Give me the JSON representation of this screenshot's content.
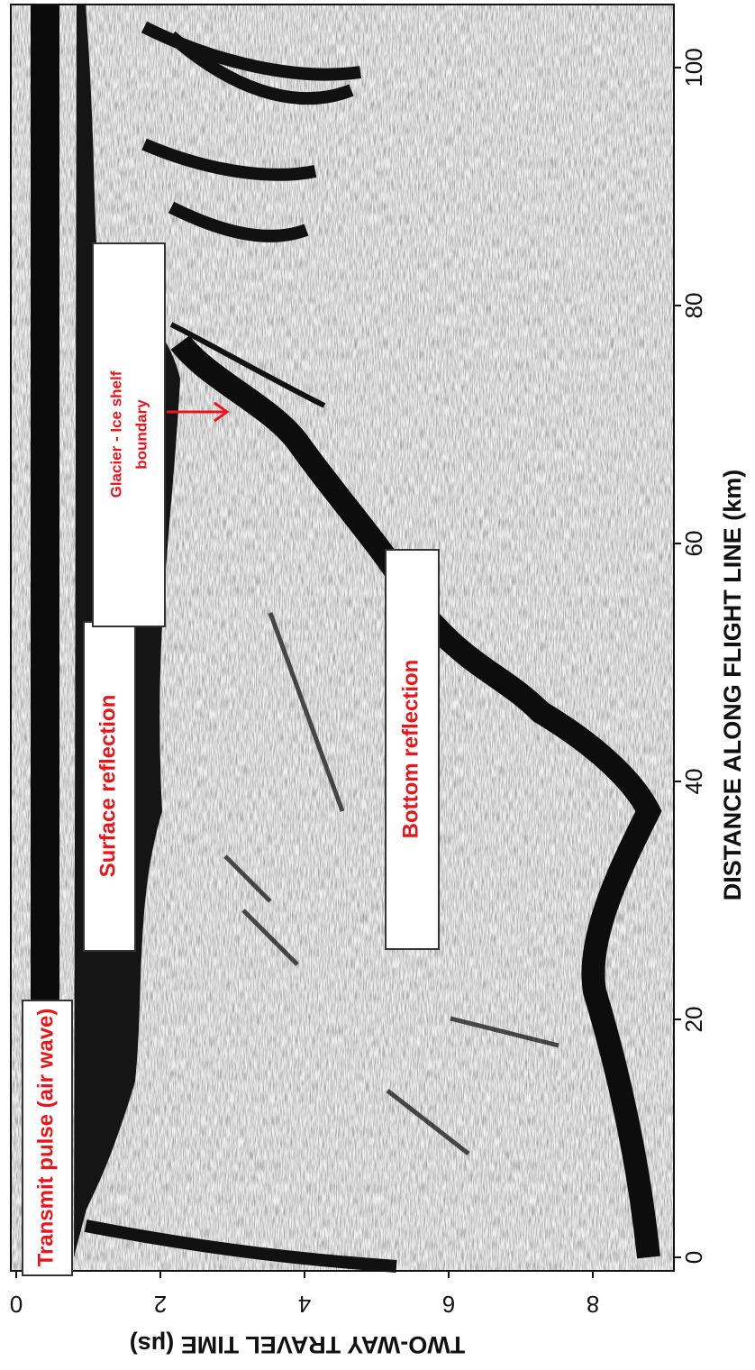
{
  "chart_data": {
    "type": "radargram",
    "xlabel": "DISTANCE ALONG FLIGHT LINE (km)",
    "ylabel": "TWO-WAY TRAVEL TIME (μs)",
    "xlim": [
      0,
      105.3
    ],
    "xticks": [
      0,
      20,
      40,
      60,
      80,
      100
    ],
    "ylim": [
      0,
      9.1
    ],
    "yticks": [
      0,
      2,
      4,
      6,
      8
    ],
    "annotations": [
      "Transmit pulse (air wave)",
      "Surface reflection",
      "Bottom reflection",
      [
        "Glacier - Ice shelf",
        "boundary"
      ]
    ]
  }
}
